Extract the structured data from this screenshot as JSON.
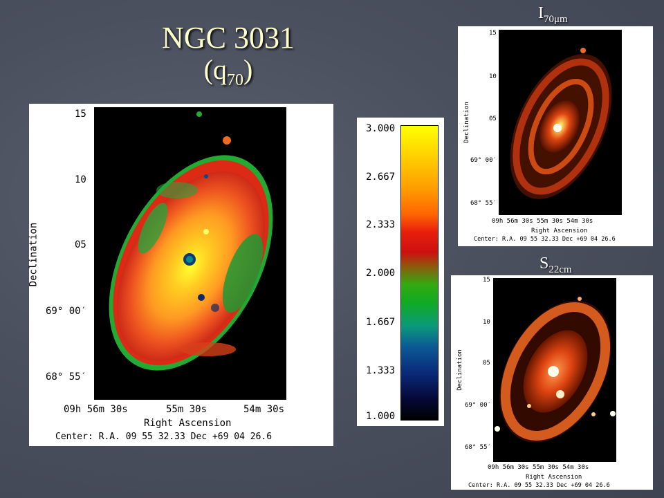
{
  "title": {
    "line1": "NGC 3031",
    "line2_prefix": "(q",
    "line2_sub": "70",
    "line2_suffix": ")"
  },
  "top_label": {
    "main": "I",
    "sub": "70μm"
  },
  "bottom_label": {
    "main": "S",
    "sub": "22cm"
  },
  "main_panel": {
    "y_ticks": [
      "15",
      "10",
      "05",
      "69° 00′",
      "68° 55′"
    ],
    "x_ticks": [
      "09h 56m 30s",
      "55m 30s",
      "54m 30s"
    ],
    "xlabel": "Right Ascension",
    "ylabel": "Declination",
    "center": "Center:  R.A. 09 55 32.33     Dec  +69 04 26.6"
  },
  "colorbar": {
    "ticks": [
      "3.000",
      "2.667",
      "2.333",
      "2.000",
      "1.667",
      "1.333",
      "1.000"
    ]
  },
  "small_panels": {
    "y_ticks": [
      "15",
      "10",
      "05",
      "69° 00′",
      "68° 55′"
    ],
    "x_ticks": "09h 56m 30s  55m 30s   54m 30s",
    "xlabel": "Right Ascension",
    "ylabel": "Declination",
    "center": "Center:  R.A. 09 55 32.33     Dec  +69 04 26.6"
  }
}
